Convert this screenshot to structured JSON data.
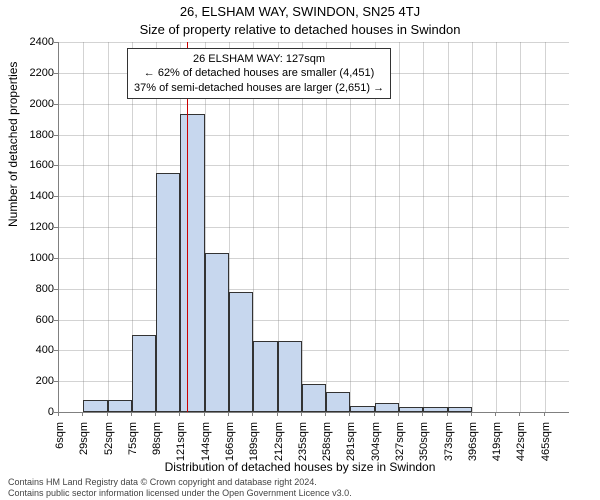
{
  "title_line1": "26, ELSHAM WAY, SWINDON, SN25 4TJ",
  "title_line2": "Size of property relative to detached houses in Swindon",
  "ylabel": "Number of detached properties",
  "xlabel": "Distribution of detached houses by size in Swindon",
  "yaxis": {
    "min": 0,
    "max": 2400,
    "step": 200
  },
  "xticks": [
    "6sqm",
    "29sqm",
    "52sqm",
    "75sqm",
    "98sqm",
    "121sqm",
    "144sqm",
    "166sqm",
    "189sqm",
    "212sqm",
    "235sqm",
    "258sqm",
    "281sqm",
    "304sqm",
    "327sqm",
    "350sqm",
    "373sqm",
    "396sqm",
    "419sqm",
    "442sqm",
    "465sqm"
  ],
  "bars": {
    "bin_width_sqm": 23,
    "start_sqm": 6,
    "values": [
      0,
      80,
      80,
      500,
      1550,
      1930,
      1030,
      780,
      460,
      460,
      180,
      130,
      40,
      60,
      30,
      30,
      30,
      0,
      0,
      0,
      0
    ],
    "fill_color": "#c7d7ee",
    "border_color": "#333333"
  },
  "reference": {
    "value_sqm": 127,
    "line_color": "#cc0000"
  },
  "annotation": {
    "line1": "26 ELSHAM WAY: 127sqm",
    "line2": "← 62% of detached houses are smaller (4,451)",
    "line3": "37% of semi-detached houses are larger (2,651) →"
  },
  "grid_color": "rgba(128,128,128,0.35)",
  "background_color": "#ffffff",
  "footer_line1": "Contains HM Land Registry data © Crown copyright and database right 2024.",
  "footer_line2": "Contains public sector information licensed under the Open Government Licence v3.0."
}
